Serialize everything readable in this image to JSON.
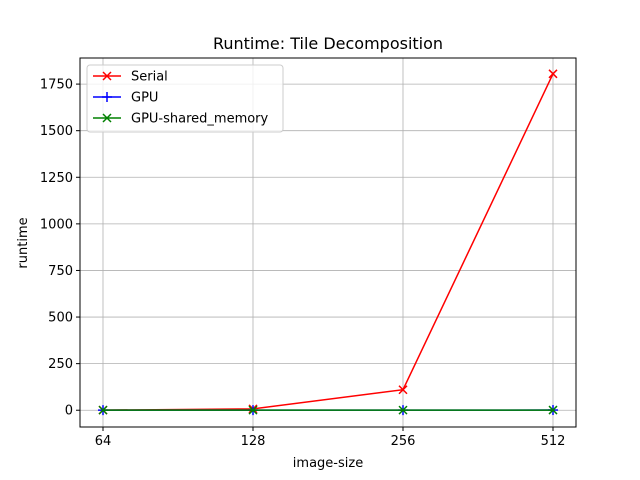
{
  "chart_data": {
    "type": "line",
    "title": "Runtime: Tile Decomposition",
    "xlabel": "image-size",
    "ylabel": "runtime",
    "categories": [
      "64",
      "128",
      "256",
      "512"
    ],
    "y_ticks": [
      0,
      250,
      500,
      750,
      1000,
      1250,
      1500,
      1750
    ],
    "ylim": [
      -90,
      1890
    ],
    "grid": true,
    "legend_position": "top-left",
    "series": [
      {
        "name": "Serial",
        "values": [
          0.5,
          7,
          110,
          1805
        ],
        "color": "#ff0000",
        "marker": "x"
      },
      {
        "name": "GPU",
        "values": [
          0.5,
          0.5,
          0.5,
          1
        ],
        "color": "#0000ff",
        "marker": "plus"
      },
      {
        "name": "GPU-shared_memory",
        "values": [
          0.5,
          0.5,
          0.5,
          0.8
        ],
        "color": "#008000",
        "marker": "x"
      }
    ]
  }
}
